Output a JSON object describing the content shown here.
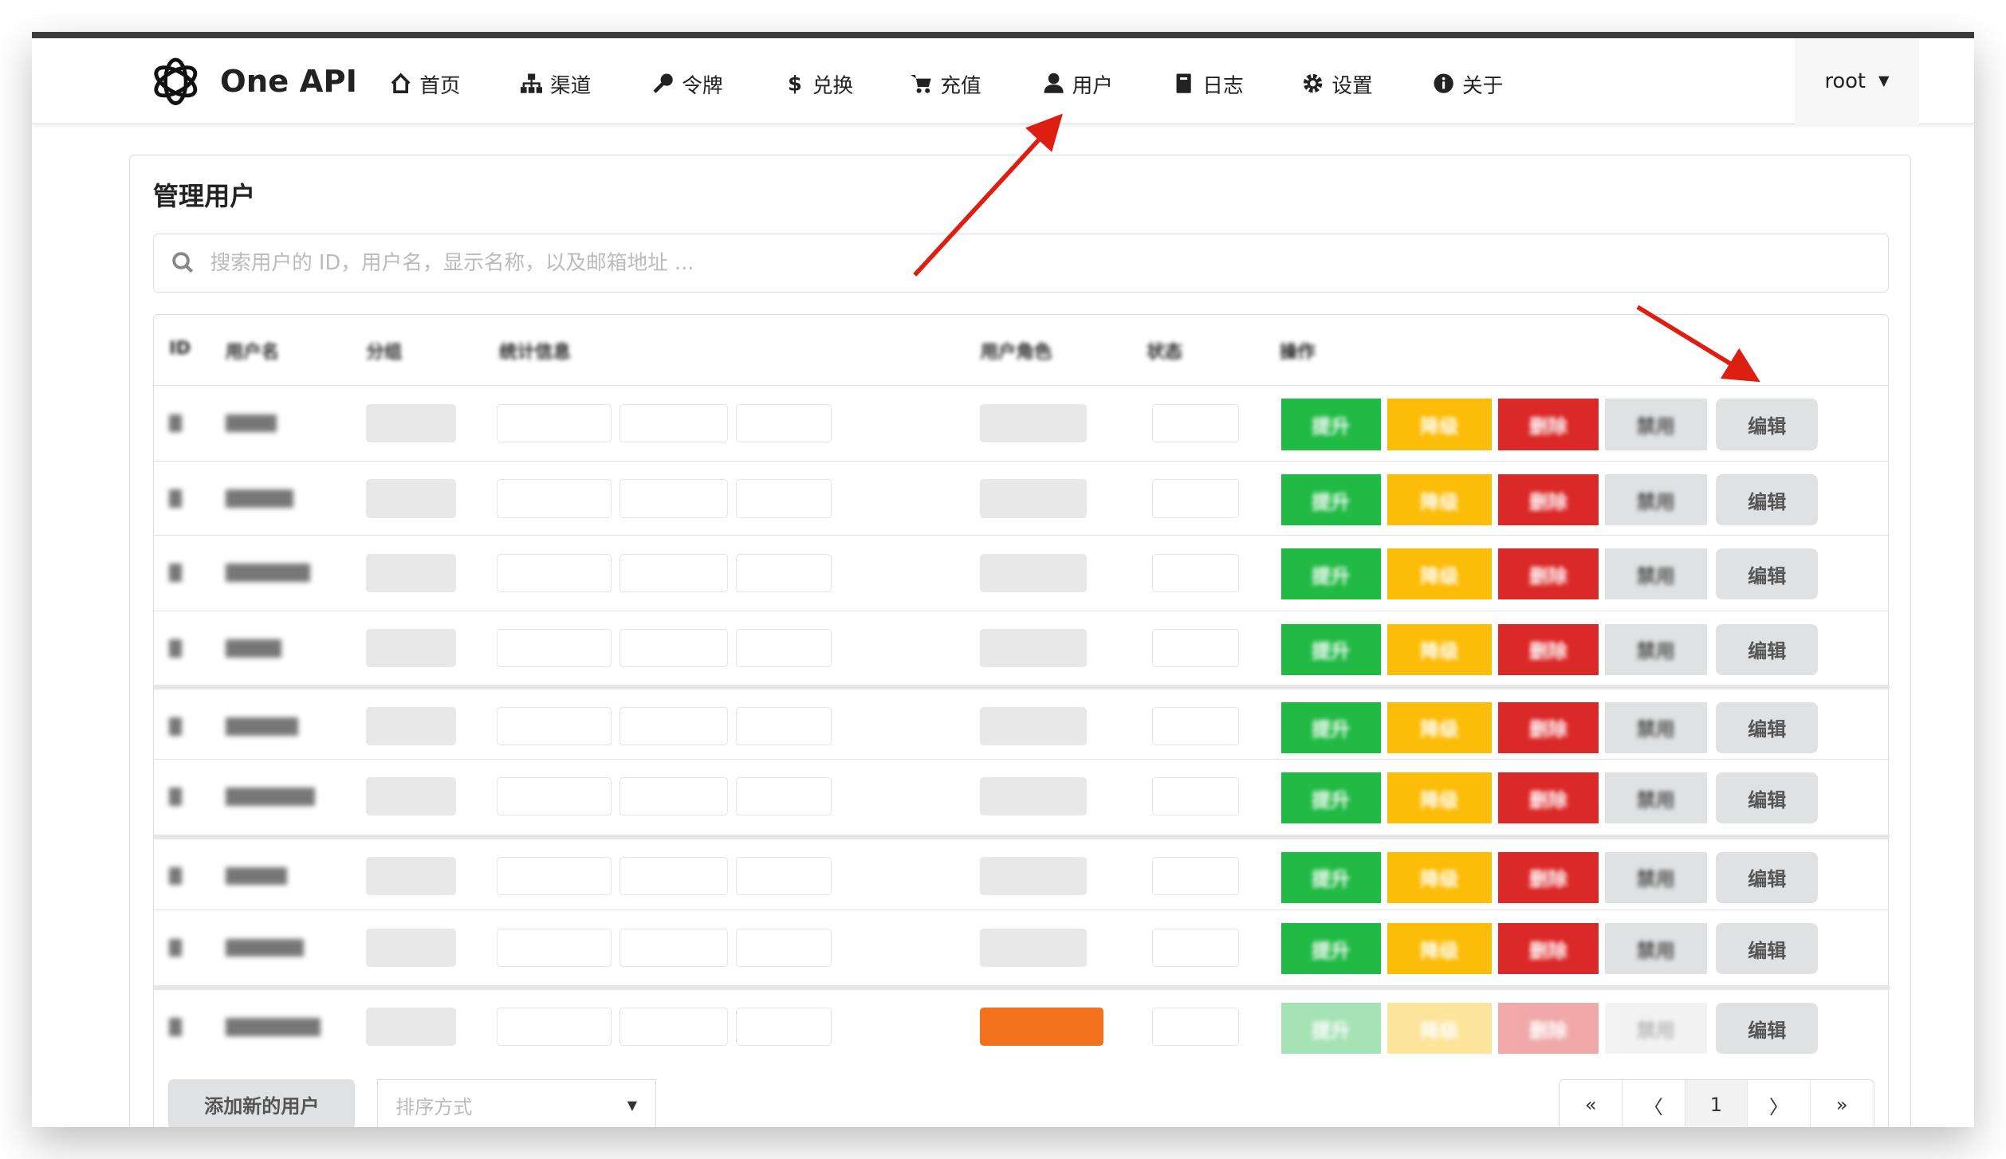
{
  "app": {
    "brand": "One API",
    "user": "root"
  },
  "nav": [
    {
      "label": "首页",
      "icon": "home-icon"
    },
    {
      "label": "渠道",
      "icon": "sitemap-icon"
    },
    {
      "label": "令牌",
      "icon": "key-icon"
    },
    {
      "label": "兑换",
      "icon": "dollar-icon"
    },
    {
      "label": "充值",
      "icon": "cart-icon"
    },
    {
      "label": "用户",
      "icon": "user-icon"
    },
    {
      "label": "日志",
      "icon": "book-icon"
    },
    {
      "label": "设置",
      "icon": "gear-icon"
    },
    {
      "label": "关于",
      "icon": "info-icon"
    }
  ],
  "page": {
    "title": "管理用户",
    "search_placeholder": "搜索用户的 ID，用户名，显示名称，以及邮箱地址 ..."
  },
  "table": {
    "headers": [
      "ID",
      "用户名",
      "分组",
      "统计信息",
      "用户角色",
      "状态",
      "操作"
    ],
    "actions": {
      "promote": "提升",
      "demote": "降级",
      "delete": "删除",
      "disable": "禁用",
      "edit": "编辑"
    },
    "rows": [
      {
        "role": "normal",
        "disabled": false
      },
      {
        "role": "normal",
        "disabled": false
      },
      {
        "role": "normal",
        "disabled": false
      },
      {
        "role": "normal",
        "disabled": false
      },
      {
        "role": "normal",
        "disabled": false
      },
      {
        "role": "normal",
        "disabled": false
      },
      {
        "role": "normal",
        "disabled": false
      },
      {
        "role": "normal",
        "disabled": false
      },
      {
        "role": "root",
        "disabled": true
      }
    ]
  },
  "footer": {
    "add_user": "添加新的用户",
    "sort_placeholder": "排序方式",
    "pagination": [
      "«",
      "〈",
      "1",
      "〉",
      "»"
    ],
    "current_page": "1"
  },
  "colors": {
    "green": "#21ba45",
    "yellow": "#fbbd08",
    "red": "#db2828",
    "gray": "#e0e1e2",
    "orange": "#f2711c",
    "annotation_arrow": "#dd1f12"
  }
}
